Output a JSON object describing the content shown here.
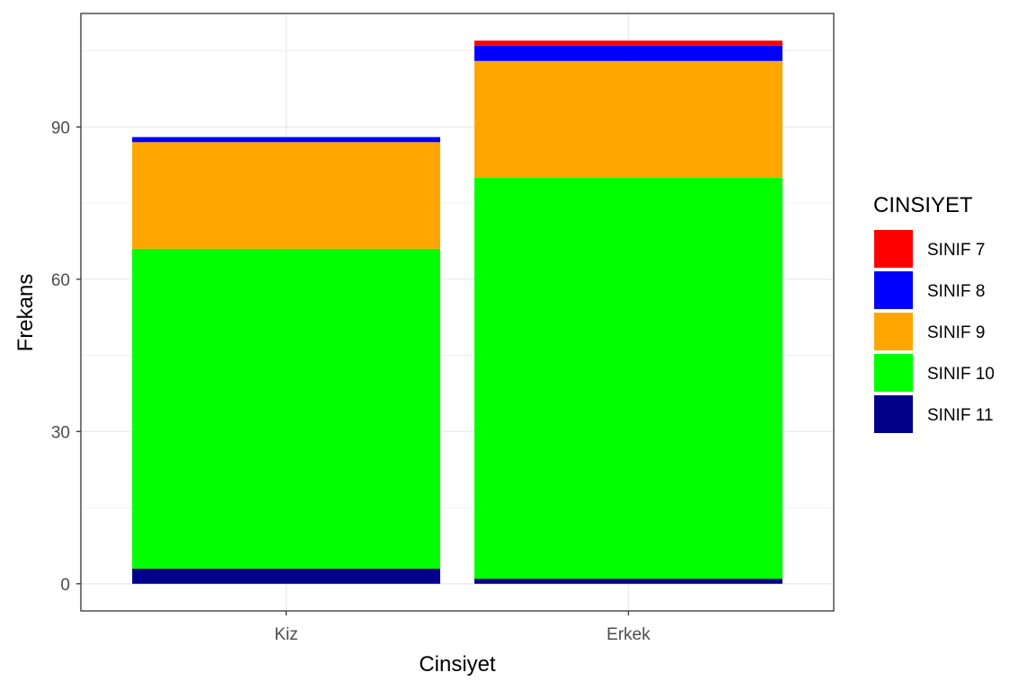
{
  "chart_data": {
    "type": "bar",
    "stacked": true,
    "categories": [
      "Kiz",
      "Erkek"
    ],
    "series": [
      {
        "name": "SINIF 7",
        "color": "#ff0000",
        "values": [
          0,
          1
        ]
      },
      {
        "name": "SINIF 8",
        "color": "#0000ff",
        "values": [
          1,
          3
        ]
      },
      {
        "name": "SINIF 9",
        "color": "#ffa500",
        "values": [
          21,
          23
        ]
      },
      {
        "name": "SINIF 10",
        "color": "#00ff00",
        "values": [
          63,
          79
        ]
      },
      {
        "name": "SINIF 11",
        "color": "#00008b",
        "values": [
          3,
          1
        ]
      }
    ],
    "xlabel": "Cinsiyet",
    "ylabel": "Frekans",
    "ylim": [
      -5.35,
      112.35
    ],
    "yticks": [
      0,
      30,
      60,
      90
    ],
    "grid": true,
    "legend": {
      "title": "CINSIYET",
      "position": "right"
    }
  }
}
